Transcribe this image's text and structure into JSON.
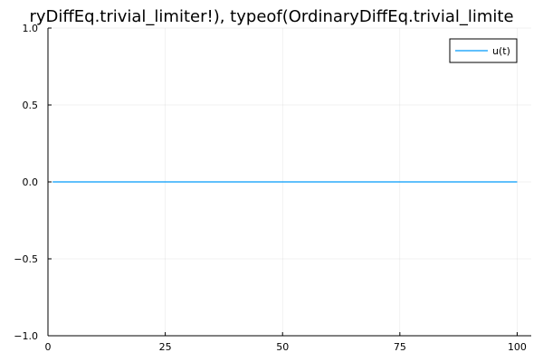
{
  "chart_data": {
    "type": "line",
    "title": "ryDiffEq.trivial_limiter!), typeof(OrdinaryDiffEq.trivial_limite",
    "xlabel": "",
    "ylabel": "",
    "xlim": [
      0,
      103
    ],
    "ylim": [
      -1.0,
      1.0
    ],
    "xticks": [
      0,
      25,
      50,
      75,
      100
    ],
    "xtick_labels": [
      "0",
      "25",
      "50",
      "75",
      "100"
    ],
    "yticks": [
      -1.0,
      -0.5,
      0.0,
      0.5,
      1.0
    ],
    "ytick_labels": [
      "−1.0",
      "−0.5",
      "0.0",
      "0.5",
      "1.0"
    ],
    "grid": true,
    "legend_position": "top-right",
    "series": [
      {
        "name": "u(t)",
        "color": "#009AFA",
        "x": [
          1,
          100
        ],
        "y": [
          0.0,
          0.0
        ]
      }
    ]
  }
}
